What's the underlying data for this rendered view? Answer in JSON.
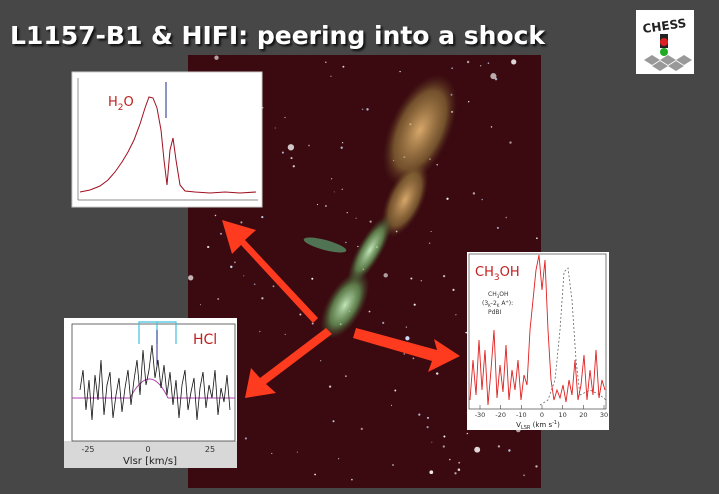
{
  "slide": {
    "title": "L1157-B1 & HIFI: peering into a shock",
    "logo": "CHESS",
    "h2o_panel": {
      "label": [
        "H",
        "2",
        "O"
      ]
    },
    "hcl_panel": {
      "label": "HCl",
      "xticks": [
        "-25",
        "0",
        "25"
      ],
      "xlabel": "Vlsr [km/s]"
    },
    "ch3oh_panel": {
      "label": [
        "CH",
        "3",
        "OH"
      ],
      "note": [
        "CH",
        "3",
        "OH",
        "(3",
        "K",
        "-2",
        "K",
        " A",
        "+",
        "):",
        "PdBI"
      ],
      "xticks": [
        "-30",
        "-20",
        "-10",
        "0",
        "10",
        "20",
        "30"
      ],
      "xlabel": [
        "V",
        "LSR",
        " (km s",
        "-1",
        ")"
      ]
    }
  }
}
